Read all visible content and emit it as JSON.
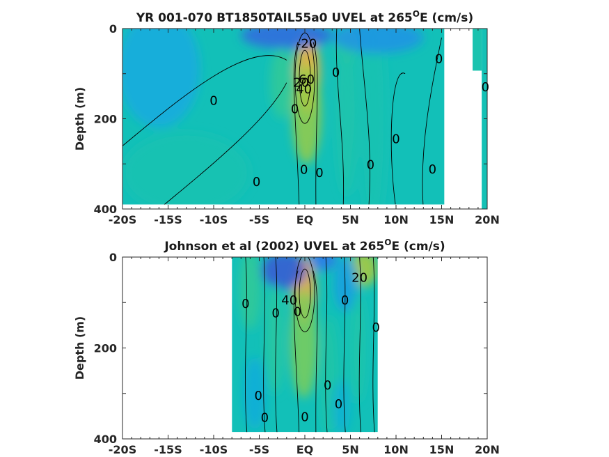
{
  "chart_data": [
    {
      "type": "heatmap",
      "title_main": "YR 001-070 BT1850TAIL55a0 UVEL at 265",
      "title_sup": "O",
      "title_tail": "E (cm/s)",
      "ylabel": "Depth (m)",
      "xlim": [
        -20,
        20
      ],
      "ylim": [
        0,
        400
      ],
      "x_ticks": [
        {
          "value": -20,
          "label": "-20S"
        },
        {
          "value": -15,
          "label": "-15S"
        },
        {
          "value": -10,
          "label": "-10S"
        },
        {
          "value": -5,
          "label": "-5S"
        },
        {
          "value": 0,
          "label": "EQ"
        },
        {
          "value": 5,
          "label": "5N"
        },
        {
          "value": 10,
          "label": "10N"
        },
        {
          "value": 15,
          "label": "15N"
        },
        {
          "value": 20,
          "label": "20N"
        }
      ],
      "y_ticks": [
        {
          "value": 0,
          "label": "0"
        },
        {
          "value": 200,
          "label": "200"
        },
        {
          "value": 400,
          "label": "400"
        }
      ],
      "data_extent_x": [
        -20,
        15.3
      ],
      "data_extent_y": [
        0,
        390
      ],
      "features": [
        {
          "x": 0.3,
          "y": 100,
          "rx": 1.4,
          "ry": 90,
          "value": 65
        },
        {
          "x": 0.2,
          "y": 190,
          "rx": 1.6,
          "ry": 110,
          "value": 30
        },
        {
          "x": -2.5,
          "y": 120,
          "rx": 1.3,
          "ry": 80,
          "value": 12
        },
        {
          "x": 4.6,
          "y": 40,
          "rx": 1.2,
          "ry": 40,
          "value": 14
        },
        {
          "x": 4.6,
          "y": 170,
          "rx": 1.2,
          "ry": 200,
          "value": 6
        },
        {
          "x": 7.5,
          "y": 200,
          "rx": 1.5,
          "ry": 250,
          "value": 4
        },
        {
          "x": -2.0,
          "y": 15,
          "rx": 5.0,
          "ry": 30,
          "value": -30
        },
        {
          "x": 8.0,
          "y": 20,
          "rx": 5.0,
          "ry": 35,
          "value": -18
        },
        {
          "x": -16,
          "y": 90,
          "rx": 4.5,
          "ry": 130,
          "value": -12
        },
        {
          "x": -13,
          "y": 320,
          "rx": 7,
          "ry": 90,
          "value": 4
        }
      ],
      "contour_labels": [
        {
          "text": "-20",
          "x": 0.2,
          "y": 33
        },
        {
          "text": "60",
          "x": 0.2,
          "y": 113
        },
        {
          "text": "20",
          "x": -0.4,
          "y": 120
        },
        {
          "text": "40",
          "x": -0.1,
          "y": 134
        },
        {
          "text": "0",
          "x": -10.0,
          "y": 160
        },
        {
          "text": "0",
          "x": -5.3,
          "y": 340
        },
        {
          "text": "0",
          "x": -1.1,
          "y": 178
        },
        {
          "text": "0",
          "x": -0.1,
          "y": 313
        },
        {
          "text": "0",
          "x": 1.6,
          "y": 320
        },
        {
          "text": "0",
          "x": 3.4,
          "y": 97
        },
        {
          "text": "0",
          "x": 7.2,
          "y": 302
        },
        {
          "text": "0",
          "x": 10.0,
          "y": 245
        },
        {
          "text": "0",
          "x": 14.7,
          "y": 67
        },
        {
          "text": "0",
          "x": 14.0,
          "y": 312
        },
        {
          "text": "0",
          "x": 19.8,
          "y": 130
        }
      ]
    },
    {
      "type": "heatmap",
      "title_main": "Johnson et al (2002) UVEL at 265",
      "title_sup": "O",
      "title_tail": "E (cm/s)",
      "ylabel": "Depth (m)",
      "xlim": [
        -20,
        20
      ],
      "ylim": [
        0,
        400
      ],
      "x_ticks": [
        {
          "value": -20,
          "label": "-20S"
        },
        {
          "value": -15,
          "label": "-15S"
        },
        {
          "value": -10,
          "label": "-10S"
        },
        {
          "value": -5,
          "label": "-5S"
        },
        {
          "value": 0,
          "label": "EQ"
        },
        {
          "value": 5,
          "label": "5N"
        },
        {
          "value": 10,
          "label": "10N"
        },
        {
          "value": 15,
          "label": "15N"
        },
        {
          "value": 20,
          "label": "20N"
        }
      ],
      "y_ticks": [
        {
          "value": 0,
          "label": "0"
        },
        {
          "value": 200,
          "label": "200"
        },
        {
          "value": 400,
          "label": "400"
        }
      ],
      "data_extent_x": [
        -8,
        8
      ],
      "data_extent_y": [
        0,
        385
      ],
      "features": [
        {
          "x": -0.1,
          "y": 75,
          "rx": 1.3,
          "ry": 75,
          "value": 70
        },
        {
          "x": -0.1,
          "y": 190,
          "rx": 1.5,
          "ry": 120,
          "value": 25
        },
        {
          "x": 6.5,
          "y": 25,
          "rx": 1.5,
          "ry": 40,
          "value": 35
        },
        {
          "x": -2.3,
          "y": 30,
          "rx": 2.5,
          "ry": 40,
          "value": -35
        },
        {
          "x": 2.0,
          "y": 5,
          "rx": 1.5,
          "ry": 25,
          "value": -25
        },
        {
          "x": 4.5,
          "y": 60,
          "rx": 1.3,
          "ry": 60,
          "value": -15
        },
        {
          "x": -6.0,
          "y": 70,
          "rx": 1.2,
          "ry": 90,
          "value": 12
        },
        {
          "x": -3.3,
          "y": 180,
          "rx": 1.0,
          "ry": 120,
          "value": 10
        },
        {
          "x": 2.7,
          "y": 260,
          "rx": 1.0,
          "ry": 130,
          "value": 8
        },
        {
          "x": 5.8,
          "y": 200,
          "rx": 0.9,
          "ry": 120,
          "value": 7
        },
        {
          "x": -5.5,
          "y": 300,
          "rx": 1.2,
          "ry": 80,
          "value": -10
        },
        {
          "x": 4.0,
          "y": 330,
          "rx": 1.0,
          "ry": 60,
          "value": -8
        }
      ],
      "contour_labels": [
        {
          "text": "20",
          "x": 6.0,
          "y": 45
        },
        {
          "text": "40",
          "x": -1.7,
          "y": 95
        },
        {
          "text": "0",
          "x": -6.5,
          "y": 103
        },
        {
          "text": "0",
          "x": -3.2,
          "y": 123
        },
        {
          "text": "0",
          "x": -0.8,
          "y": 120
        },
        {
          "text": "0",
          "x": 4.4,
          "y": 95
        },
        {
          "text": "0",
          "x": 7.8,
          "y": 155
        },
        {
          "text": "0",
          "x": -5.1,
          "y": 305
        },
        {
          "text": "0",
          "x": -4.4,
          "y": 353
        },
        {
          "text": "0",
          "x": 2.5,
          "y": 282
        },
        {
          "text": "0",
          "x": 3.7,
          "y": 323
        },
        {
          "text": "0",
          "x": 0.0,
          "y": 352
        }
      ]
    }
  ]
}
